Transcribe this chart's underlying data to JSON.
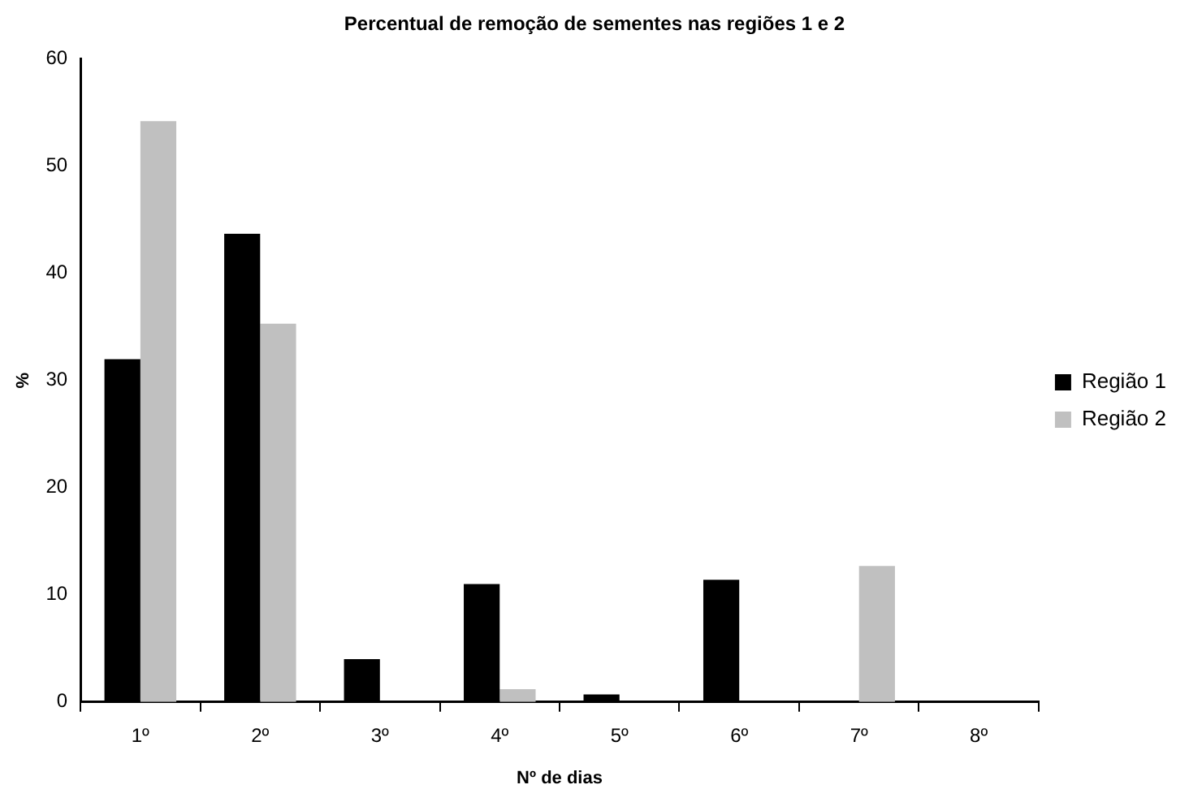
{
  "chart_data": {
    "type": "bar",
    "title": "Percentual de remoção de sementes nas regiões 1 e 2",
    "xlabel": "Nº de dias",
    "ylabel": "%",
    "categories": [
      "1º",
      "2º",
      "3º",
      "4º",
      "5º",
      "6º",
      "7º",
      "8º"
    ],
    "series": [
      {
        "name": "Região 1",
        "color": "#000000",
        "values": [
          32,
          43.7,
          4,
          11,
          0.7,
          11.4,
          0,
          0
        ]
      },
      {
        "name": "Região 2",
        "color": "#c0c0c0",
        "values": [
          54.2,
          35.3,
          0,
          1.2,
          0,
          0,
          12.7,
          0
        ]
      }
    ],
    "ylim": [
      0,
      60
    ],
    "yticks": [
      0,
      10,
      20,
      30,
      40,
      50,
      60
    ],
    "grid": false,
    "legend": "right"
  }
}
